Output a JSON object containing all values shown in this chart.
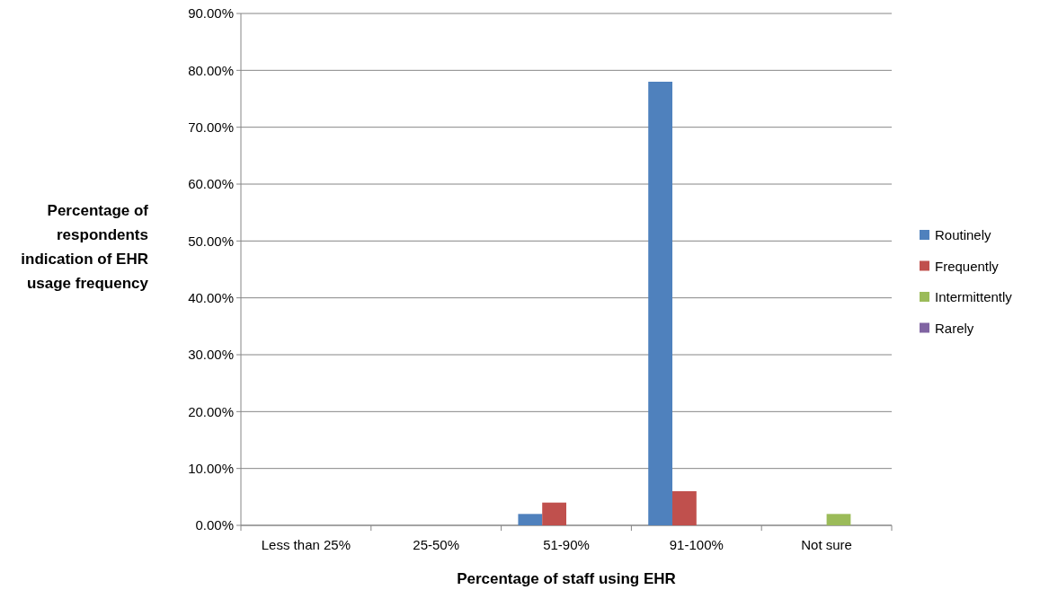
{
  "chart_data": {
    "type": "bar",
    "xlabel": "Percentage of staff using EHR",
    "ylabel": "Percentage of respondents indication of EHR usage frequency",
    "categories": [
      "Less than 25%",
      "25-50%",
      "51-90%",
      "91-100%",
      "Not sure"
    ],
    "series": [
      {
        "name": "Routinely",
        "color": "#4f81bd",
        "values": [
          0,
          0,
          2,
          78,
          0
        ]
      },
      {
        "name": "Frequently",
        "color": "#c0504d",
        "values": [
          0,
          0,
          4,
          6,
          0
        ]
      },
      {
        "name": "Intermittently",
        "color": "#9bbb59",
        "values": [
          0,
          0,
          0,
          0,
          2
        ]
      },
      {
        "name": "Rarely",
        "color": "#8064a2",
        "values": [
          0,
          0,
          0,
          0,
          0
        ]
      }
    ],
    "ylim": [
      0,
      90
    ],
    "yticks": [
      {
        "value": 0,
        "label": "0.00%"
      },
      {
        "value": 10,
        "label": "10.00%"
      },
      {
        "value": 20,
        "label": "20.00%"
      },
      {
        "value": 30,
        "label": "30.00%"
      },
      {
        "value": 40,
        "label": "40.00%"
      },
      {
        "value": 50,
        "label": "50.00%"
      },
      {
        "value": 60,
        "label": "60.00%"
      },
      {
        "value": 70,
        "label": "70.00%"
      },
      {
        "value": 80,
        "label": "80.00%"
      },
      {
        "value": 90,
        "label": "90.00%"
      }
    ],
    "grid": "y",
    "legend": "right"
  }
}
